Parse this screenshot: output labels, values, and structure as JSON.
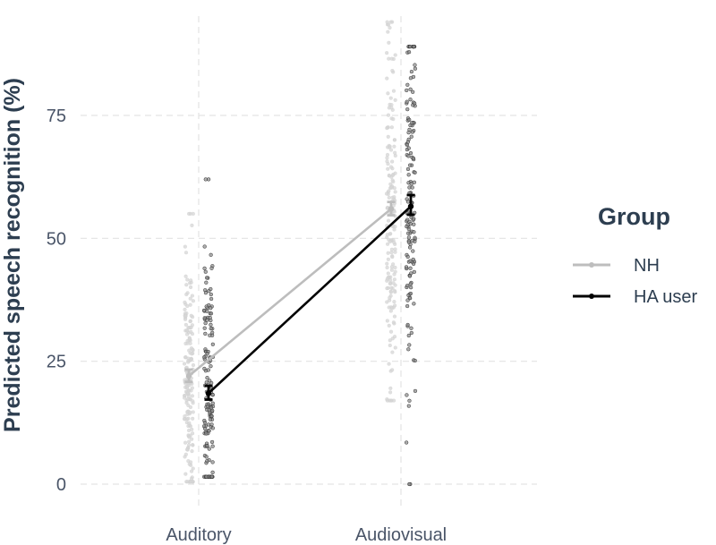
{
  "chart_data": {
    "type": "scatter",
    "ylabel": "Predicted speech recognition (%)",
    "xlabel": "",
    "categories": [
      "Auditory",
      "Audiovisual"
    ],
    "ylim": [
      -2,
      95
    ],
    "y_ticks": [
      0,
      25,
      50,
      75
    ],
    "grid": true,
    "legend": {
      "title": "Group",
      "position": "right"
    },
    "series": [
      {
        "name": "NH",
        "color": "#bdbdbd",
        "mean": [
          22.0,
          56.0
        ],
        "ci_low": [
          20.8,
          54.7
        ],
        "ci_high": [
          23.3,
          57.4
        ],
        "points_summary": [
          {
            "category": "Auditory",
            "count": 180,
            "min": 0.5,
            "max": 55
          },
          {
            "category": "Audiovisual",
            "count": 180,
            "min": 17,
            "max": 94
          }
        ]
      },
      {
        "name": "HA user",
        "color": "#000000",
        "mean": [
          18.5,
          56.5
        ],
        "ci_low": [
          17.2,
          54.8
        ],
        "ci_high": [
          20.0,
          58.8
        ],
        "points_summary": [
          {
            "category": "Auditory",
            "count": 150,
            "min": 1.5,
            "max": 62
          },
          {
            "category": "Audiovisual",
            "count": 150,
            "min": 0,
            "max": 89
          }
        ]
      }
    ]
  }
}
